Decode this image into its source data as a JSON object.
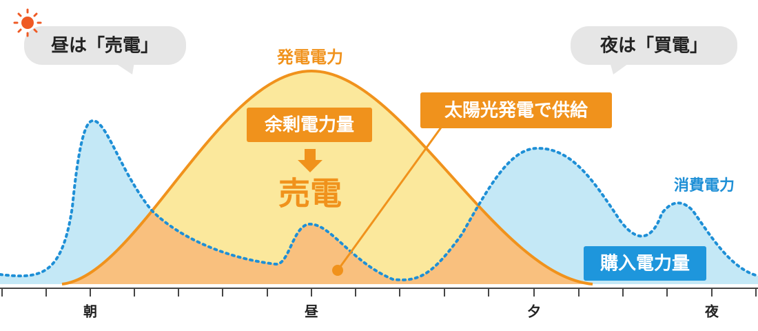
{
  "bubbles": {
    "day": "昼は「売電」",
    "night": "夜は「買電」"
  },
  "curve_labels": {
    "generation": "発電電力",
    "consumption": "消費電力"
  },
  "callouts": {
    "surplus": "余剰電力量",
    "sell": "売電",
    "solar_supply": "太陽光発電で供給",
    "purchase": "購入電力量"
  },
  "axis": {
    "labels": [
      "朝",
      "昼",
      "夕",
      "夜"
    ]
  }
}
